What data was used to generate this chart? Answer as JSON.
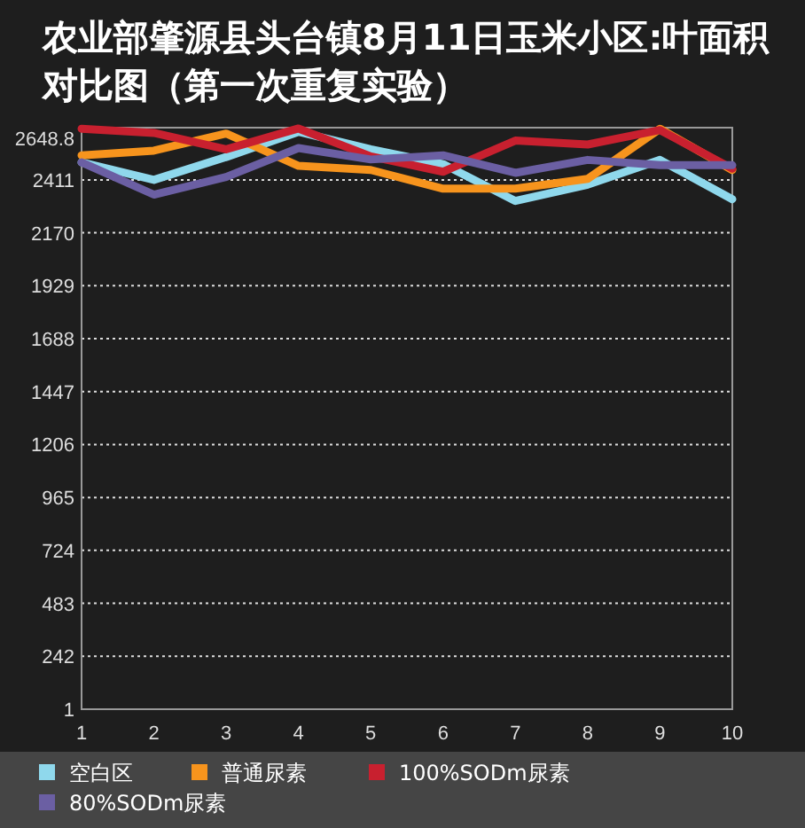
{
  "chart_data": {
    "type": "line",
    "title": "农业部肇源县头台镇8月11日玉米小区:叶面积对比图（第一次重复实验）",
    "categories": [
      "1",
      "2",
      "3",
      "4",
      "5",
      "6",
      "7",
      "8",
      "9",
      "10"
    ],
    "ylim": [
      1,
      2648.8
    ],
    "yticks": [
      1,
      242,
      483,
      724,
      965,
      1206,
      1447,
      1688,
      1929,
      2170,
      2411,
      2648.8
    ],
    "grid": "y",
    "legend": "bottom",
    "marker": "none",
    "line_style": "solid",
    "series": [
      {
        "name": "空白区",
        "color": "#8fd8ec",
        "values": [
          2491,
          2411,
          2515,
          2630,
          2550,
          2483,
          2315,
          2389,
          2502,
          2323
        ]
      },
      {
        "name": "普通尿素",
        "color": "#f7941d",
        "values": [
          2523,
          2544,
          2622,
          2475,
          2456,
          2371,
          2371,
          2416,
          2644,
          2456
        ]
      },
      {
        "name": "100%SODm尿素",
        "color": "#c8202f",
        "values": [
          2644,
          2625,
          2550,
          2645,
          2518,
          2448,
          2590,
          2572,
          2638,
          2462
        ]
      },
      {
        "name": "80%SODm尿素",
        "color": "#6b5fa3",
        "values": [
          2491,
          2344,
          2424,
          2556,
          2504,
          2523,
          2443,
          2502,
          2478,
          2478
        ]
      }
    ]
  }
}
